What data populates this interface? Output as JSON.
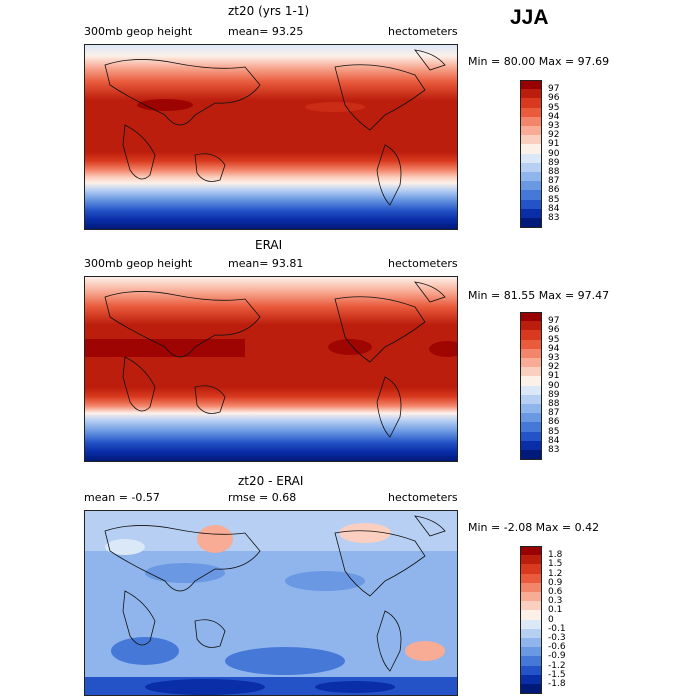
{
  "season": "JJA",
  "panels": [
    {
      "title": "zt20 (yrs 1-1)",
      "left_label": "300mb geop height",
      "mean_label": "mean=   93.25",
      "units": "hectometers",
      "minmax": "Min =  80.00 Max =   97.69",
      "colorbar": {
        "labels": [
          "97",
          "96",
          "95",
          "94",
          "93",
          "92",
          "91",
          "90",
          "89",
          "88",
          "87",
          "86",
          "85",
          "84",
          "83"
        ],
        "colors": [
          "#990000",
          "#bb1e0c",
          "#d93a1f",
          "#e95b3c",
          "#f3856a",
          "#f8ab95",
          "#fbcfbf",
          "#fdf0e8",
          "#dbe8f8",
          "#b6cff3",
          "#8fb5ec",
          "#6a98e2",
          "#4678d8",
          "#2353c6",
          "#0a2da8",
          "#001a7a"
        ]
      }
    },
    {
      "title": "ERAI",
      "left_label": "300mb geop height",
      "mean_label": "mean=   93.81",
      "units": "hectometers",
      "minmax": "Min =  81.55 Max =   97.47",
      "colorbar": {
        "labels": [
          "97",
          "96",
          "95",
          "94",
          "93",
          "92",
          "91",
          "90",
          "89",
          "88",
          "87",
          "86",
          "85",
          "84",
          "83"
        ],
        "colors": [
          "#990000",
          "#bb1e0c",
          "#d93a1f",
          "#e95b3c",
          "#f3856a",
          "#f8ab95",
          "#fbcfbf",
          "#fdf0e8",
          "#dbe8f8",
          "#b6cff3",
          "#8fb5ec",
          "#6a98e2",
          "#4678d8",
          "#2353c6",
          "#0a2da8",
          "#001a7a"
        ]
      }
    },
    {
      "title": "zt20 - ERAI",
      "left_label": "mean =   -0.57",
      "mean_label": "rmse =    0.68",
      "units": "hectometers",
      "minmax": "Min =  -2.08 Max =    0.42",
      "colorbar": {
        "labels": [
          "1.8",
          "1.5",
          "1.2",
          "0.9",
          "0.6",
          "0.3",
          "0.1",
          "0",
          "-0.1",
          "-0.3",
          "-0.6",
          "-0.9",
          "-1.2",
          "-1.5",
          "-1.8"
        ],
        "colors": [
          "#990000",
          "#bb1e0c",
          "#d93a1f",
          "#e95b3c",
          "#f3856a",
          "#f8ab95",
          "#fbcfbf",
          "#fdf0e8",
          "#dbe8f8",
          "#b6cff3",
          "#8fb5ec",
          "#6a98e2",
          "#4678d8",
          "#2353c6",
          "#0a2da8",
          "#001a7a"
        ]
      }
    }
  ]
}
